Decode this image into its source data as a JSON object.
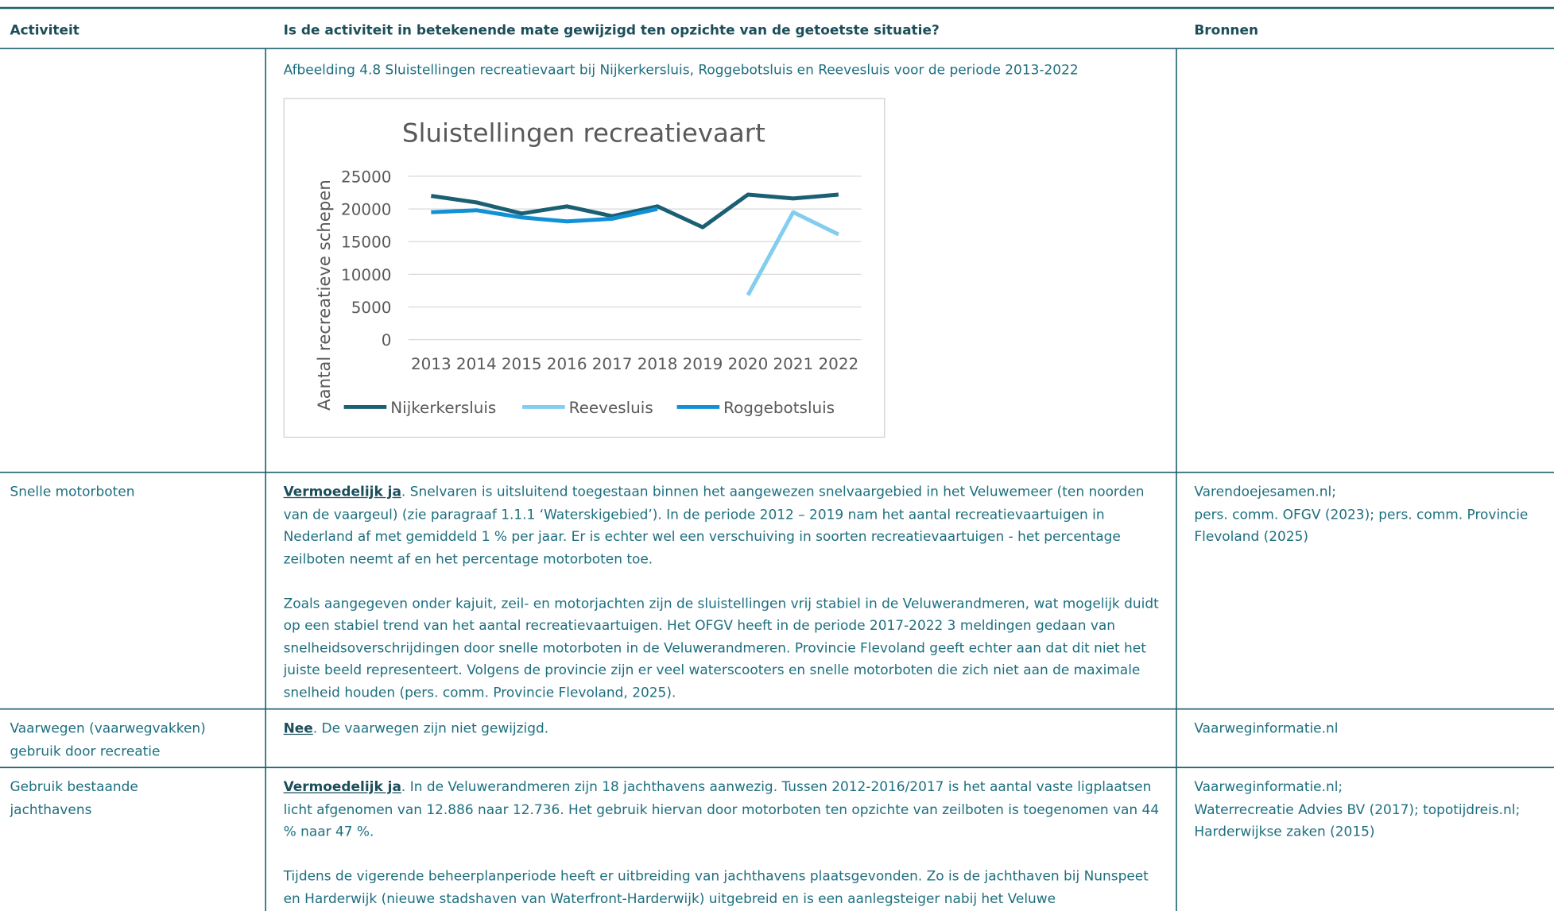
{
  "header": {
    "columns": [
      "Activiteit",
      "Is de activiteit in betekenende mate gewijzigd ten opzichte van de getoetste situatie?",
      "Bronnen"
    ]
  },
  "rows": [
    {
      "caption": "Afbeelding 4.8 Sluistellingen recreatievaart bij Nijkerkersluis, Roggebotsluis en Reevesluis voor de periode 2013-2022"
    },
    {
      "activity": "Snelle motorboten",
      "paragraphs": [
        {
          "lead": "Vermoedelijk ja",
          "text": ". Snelvaren is uitsluitend toegestaan binnen het aangewezen snelvaargebied in het Veluwemeer (ten noorden van de vaargeul) (zie paragraaf 1.1.1 ‘Waterskigebied’). In de periode 2012 – 2019 nam het aantal recreatievaartuigen in Nederland af met gemiddeld 1 % per jaar. Er is echter wel een verschuiving in soorten recreatievaartuigen - het percentage zeilboten neemt af en het percentage motorboten toe."
        },
        {
          "text": "Zoals aangegeven onder kajuit, zeil- en motorjachten zijn de sluistellingen vrij stabiel in de Veluwerandmeren, wat mogelijk duidt op een stabiel trend van het aantal recreatievaartuigen. Het OFGV heeft in de periode 2017-2022 3 meldingen gedaan van snelheidsoverschrijdingen door snelle motorboten in de Veluwerandmeren. Provincie Flevoland geeft echter aan dat dit niet het juiste beeld representeert. Volgens de provincie zijn er veel waterscooters en snelle motorboten die zich niet aan de maximale snelheid houden (pers. comm. Provincie Flevoland, 2025)."
        }
      ],
      "sources": [
        "Varendoejesamen.nl;",
        "pers. comm. OFGV (2023); pers. comm. Provincie Flevoland (2025)"
      ]
    },
    {
      "activity": "Vaarwegen (vaarwegvakken) gebruik door recreatie",
      "paragraphs": [
        {
          "lead": "Nee",
          "text": ". De vaarwegen zijn niet gewijzigd."
        }
      ],
      "sources": [
        "Vaarweginformatie.nl"
      ]
    },
    {
      "activity": "Gebruik bestaande jachthavens",
      "paragraphs": [
        {
          "lead": "Vermoedelijk ja",
          "text": ". In de Veluwerandmeren zijn 18 jachthavens aanwezig. Tussen 2012-2016/2017 is het aantal vaste ligplaatsen licht afgenomen van 12.886 naar 12.736. Het gebruik hiervan door motorboten ten opzichte van zeilboten is toegenomen van 44 % naar 47 %."
        },
        {
          "text": "Tijdens de vigerende beheerplanperiode heeft er uitbreiding van jachthavens plaatsgevonden. Zo is de jachthaven bij Nunspeet en Harderwijk (nieuwe stadshaven van Waterfront-Harderwijk) uitgebreid en is een aanlegsteiger nabij het Veluwe"
        }
      ],
      "sources": [
        "Vaarweginformatie.nl;",
        "Waterrecreatie Advies BV (2017); topotijdreis.nl;",
        "Harderwijkse zaken (2015)"
      ]
    }
  ],
  "chart_data": {
    "type": "line",
    "title": "Sluistellingen recreatievaart",
    "y_label": "Aantal recreatieve schepen",
    "categories": [
      "2013",
      "2014",
      "2015",
      "2016",
      "2017",
      "2018",
      "2019",
      "2020",
      "2021",
      "2022"
    ],
    "series": [
      {
        "name": "Nijkerkersluis",
        "color": "#1a5f73",
        "values": [
          22000,
          21000,
          19300,
          20400,
          18900,
          20400,
          17200,
          22200,
          21600,
          22200
        ]
      },
      {
        "name": "Reevesluis",
        "color": "#83cdee",
        "values": [
          null,
          null,
          null,
          null,
          null,
          null,
          null,
          6800,
          19500,
          16100
        ]
      },
      {
        "name": "Roggebotsluis",
        "color": "#1190d6",
        "values": [
          19500,
          19800,
          18700,
          18100,
          18500,
          20000,
          null,
          null,
          null,
          null
        ]
      }
    ],
    "ylim": [
      0,
      25000
    ],
    "yticks": [
      0,
      5000,
      10000,
      15000,
      20000,
      25000
    ],
    "grid": true,
    "legend": "bottom"
  }
}
